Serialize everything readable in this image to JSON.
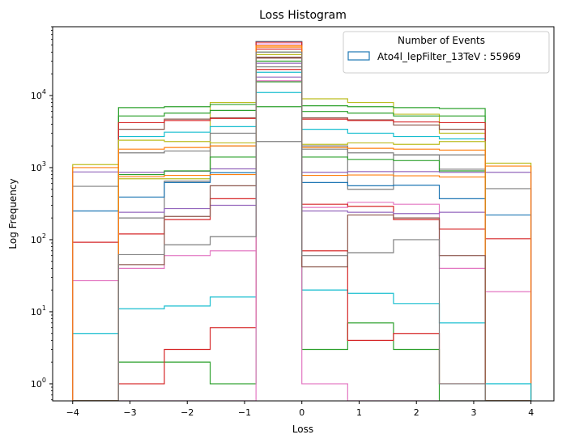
{
  "chart_data": {
    "type": "histogram",
    "title": "Loss Histogram",
    "xlabel": "Loss",
    "ylabel": "Log Frequency",
    "yscale": "log",
    "xlim": [
      -4.35,
      4.4
    ],
    "ylim": [
      0.58,
      90000
    ],
    "grid": false,
    "xticks": [
      -4,
      -3,
      -2,
      -1,
      0,
      1,
      2,
      3,
      4
    ],
    "xtick_labels": [
      "−4",
      "−3",
      "−2",
      "−1",
      "0",
      "1",
      "2",
      "3",
      "4"
    ],
    "yticks": [
      {
        "value": 1,
        "base": "10",
        "exp": "0"
      },
      {
        "value": 10,
        "base": "10",
        "exp": "1"
      },
      {
        "value": 100,
        "base": "10",
        "exp": "2"
      },
      {
        "value": 1000,
        "base": "10",
        "exp": "3"
      },
      {
        "value": 10000,
        "base": "10",
        "exp": "4"
      }
    ],
    "bin_edges": [
      -4,
      -3.2,
      -2.4,
      -1.6,
      -0.8,
      0,
      0.8,
      1.6,
      2.4,
      3.2,
      4
    ],
    "legend": {
      "title": "Number of Events",
      "location": "upper right",
      "entries": [
        {
          "label": "Ato4l_lepFilter_13TeV : 55969",
          "color": "#1f77b4"
        }
      ]
    },
    "series": [
      {
        "color": "#bcbd22",
        "counts": [
          1100,
          700,
          700,
          8000,
          55969,
          9000,
          8000,
          5500,
          3000,
          1150
        ]
      },
      {
        "color": "#7f7f7f",
        "counts": [
          550,
          200,
          650,
          3000,
          2300,
          2000,
          500,
          1500,
          950,
          510
        ]
      },
      {
        "color": "#e377c2",
        "counts": [
          27,
          40,
          60,
          70,
          52000,
          280,
          330,
          310,
          40,
          19
        ]
      },
      {
        "color": "#17becf",
        "counts": [
          5,
          11,
          12,
          16,
          11000,
          20,
          18,
          13,
          7,
          1
        ]
      },
      {
        "color": "#1f77b4",
        "counts": [
          250,
          390,
          620,
          850,
          55969,
          620,
          560,
          570,
          370,
          220
        ]
      },
      {
        "color": "#d62728",
        "counts": [
          92,
          120,
          190,
          370,
          55000,
          310,
          290,
          190,
          140,
          103
        ]
      },
      {
        "color": "#9467bd",
        "counts": [
          870,
          860,
          890,
          960,
          28000,
          860,
          880,
          880,
          860,
          860
        ]
      },
      {
        "color": "#ff7f0e",
        "counts": [
          1000,
          750,
          780,
          800,
          49000,
          780,
          790,
          770,
          740,
          1050
        ]
      },
      {
        "color": "#2ca02c",
        "counts": [
          0.58,
          2,
          2,
          1,
          40000,
          3,
          7,
          3,
          0.58,
          0.58
        ]
      },
      {
        "color": "#2ca02c",
        "counts": [
          0.58,
          6800,
          7000,
          7500,
          7000,
          7200,
          7000,
          6800,
          6600,
          0.58
        ]
      },
      {
        "color": "#2ca02c",
        "counts": [
          0.58,
          5200,
          5700,
          6200,
          15500,
          6000,
          5700,
          5200,
          5200,
          0.58
        ]
      },
      {
        "color": "#d62728",
        "counts": [
          0.58,
          1,
          3,
          6,
          23000,
          70,
          4,
          5,
          1,
          0.58
        ]
      },
      {
        "color": "#e377c2",
        "counts": [
          0.58,
          0.58,
          0.58,
          0.58,
          16000,
          1,
          0.58,
          0.58,
          0.58,
          0.58
        ]
      },
      {
        "color": "#17becf",
        "counts": [
          0.58,
          2700,
          3100,
          3700,
          21000,
          3400,
          3000,
          2700,
          2500,
          1
        ]
      },
      {
        "color": "#8c564b",
        "counts": [
          0.58,
          3400,
          4700,
          4900,
          34000,
          4900,
          4600,
          3900,
          3400,
          0.58
        ]
      },
      {
        "color": "#d62728",
        "counts": [
          0.58,
          4200,
          4500,
          4800,
          44000,
          4700,
          4500,
          4300,
          4200,
          0.58
        ]
      },
      {
        "color": "#7f7f7f",
        "counts": [
          0.58,
          1600,
          1700,
          2000,
          25000,
          1800,
          1600,
          1500,
          1500,
          0.58
        ]
      },
      {
        "color": "#bcbd22",
        "counts": [
          0.58,
          2400,
          2300,
          2200,
          37000,
          2100,
          2200,
          2100,
          2300,
          0.58
        ]
      },
      {
        "color": "#2ca02c",
        "counts": [
          0.58,
          800,
          900,
          1400,
          30000,
          1400,
          1300,
          1250,
          900,
          0.58
        ]
      },
      {
        "color": "#9467bd",
        "counts": [
          0.58,
          240,
          270,
          300,
          18000,
          250,
          240,
          230,
          240,
          0.58
        ]
      },
      {
        "color": "#ff7f0e",
        "counts": [
          0.58,
          1800,
          1900,
          2000,
          47000,
          1900,
          1850,
          1800,
          1750,
          0.58
        ]
      },
      {
        "color": "#8c564b",
        "counts": [
          0.58,
          45,
          210,
          560,
          33000,
          42,
          220,
          200,
          60,
          0.58
        ]
      },
      {
        "color": "#7f7f7f",
        "counts": [
          0.58,
          62,
          85,
          110,
          40000,
          60,
          66,
          100,
          1,
          0.58
        ]
      }
    ]
  }
}
